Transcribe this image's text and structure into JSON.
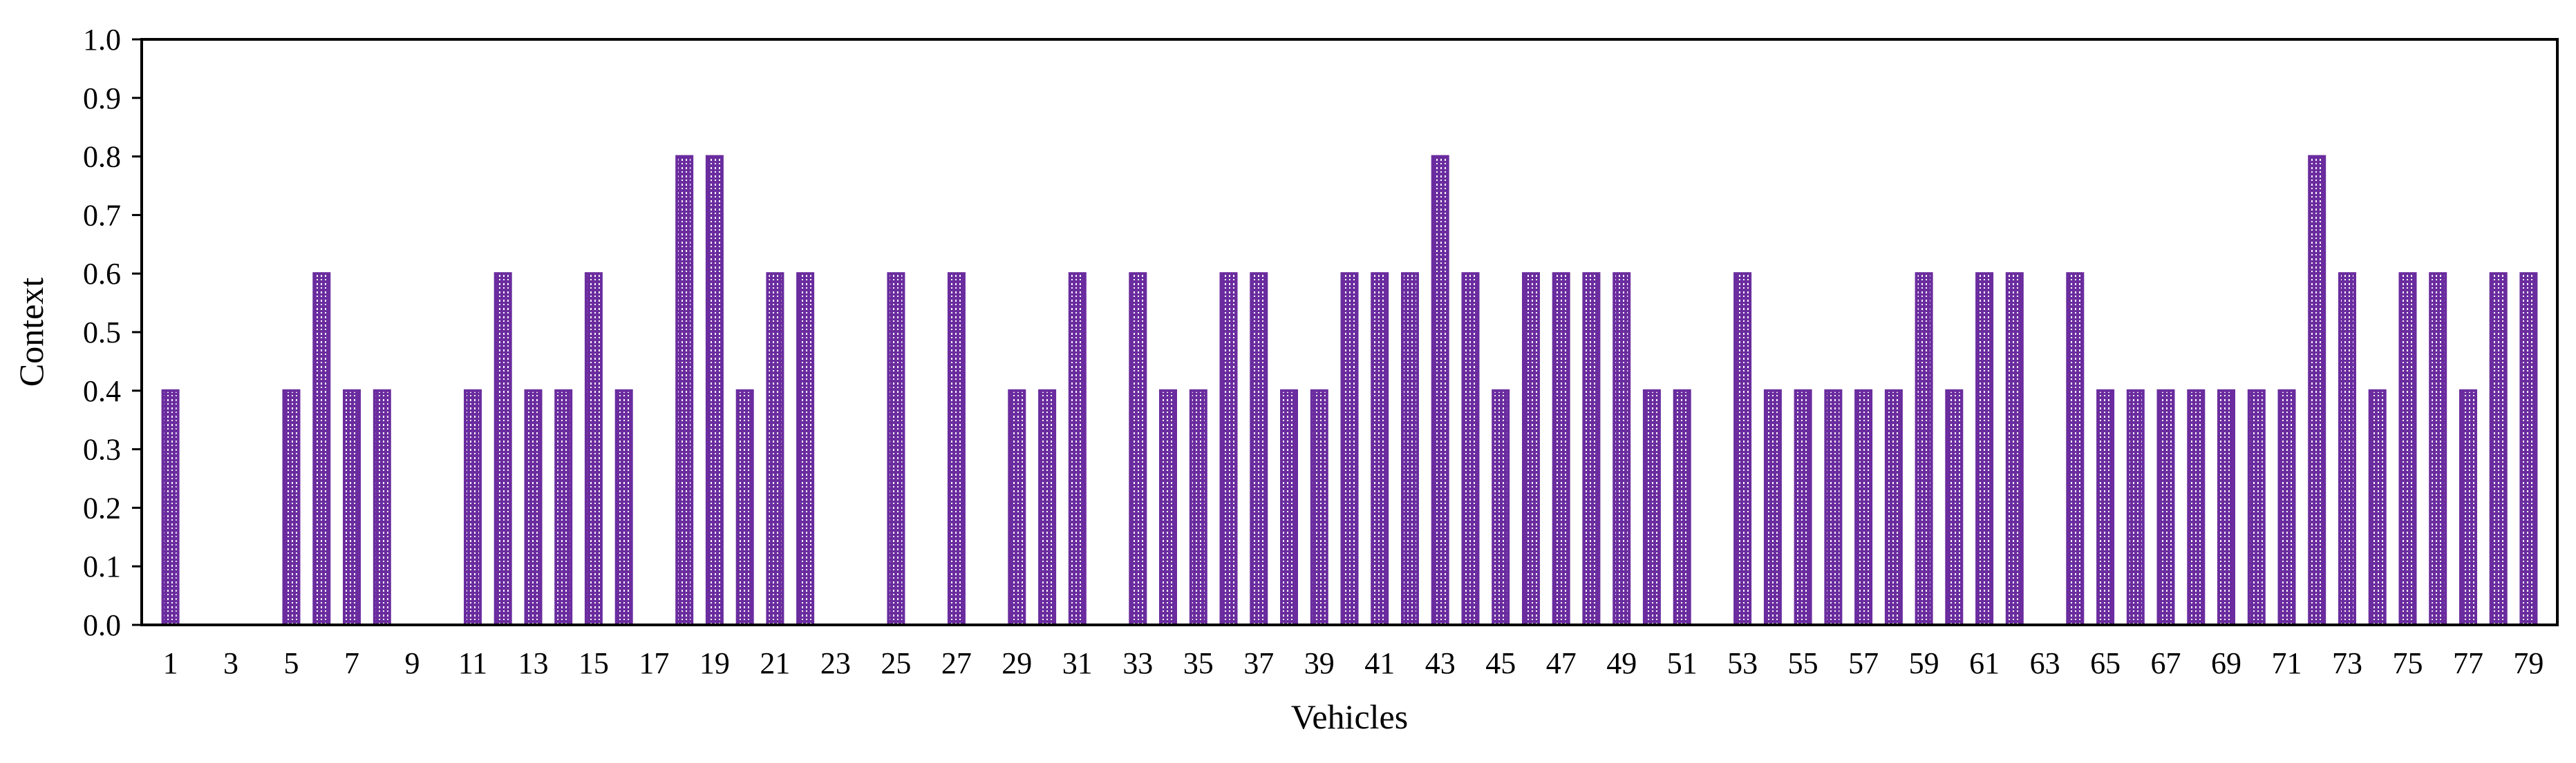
{
  "chart_data": {
    "type": "bar",
    "xlabel": "Vehicles",
    "ylabel": "Context",
    "ylim": [
      0,
      1.0
    ],
    "yticks": [
      0.0,
      0.1,
      0.2,
      0.3,
      0.4,
      0.5,
      0.6,
      0.7,
      0.8,
      0.9,
      1.0
    ],
    "ytick_labels": [
      "0.0",
      "0.1",
      "0.2",
      "0.3",
      "0.4",
      "0.5",
      "0.6",
      "0.7",
      "0.8",
      "0.9",
      "1.0"
    ],
    "categories": [
      1,
      2,
      3,
      4,
      5,
      6,
      7,
      8,
      9,
      10,
      11,
      12,
      13,
      14,
      15,
      16,
      17,
      18,
      19,
      20,
      21,
      22,
      23,
      24,
      25,
      26,
      27,
      28,
      29,
      30,
      31,
      32,
      33,
      34,
      35,
      36,
      37,
      38,
      39,
      40,
      41,
      42,
      43,
      44,
      45,
      46,
      47,
      48,
      49,
      50,
      51,
      52,
      53,
      54,
      55,
      56,
      57,
      58,
      59,
      60,
      61,
      62,
      63,
      64,
      65,
      66,
      67,
      68,
      69,
      70,
      71,
      72,
      73,
      74,
      75,
      76,
      77,
      78,
      79
    ],
    "xtick_labels": [
      "1",
      "3",
      "5",
      "7",
      "9",
      "11",
      "13",
      "15",
      "17",
      "19",
      "21",
      "23",
      "25",
      "27",
      "29",
      "31",
      "33",
      "35",
      "37",
      "39",
      "41",
      "43",
      "45",
      "47",
      "49",
      "51",
      "53",
      "55",
      "57",
      "59",
      "61",
      "63",
      "65",
      "67",
      "69",
      "71",
      "73",
      "75",
      "77",
      "79"
    ],
    "values": [
      0.4,
      0,
      0,
      0,
      0.4,
      0.6,
      0.4,
      0.4,
      0,
      0,
      0.4,
      0.6,
      0.4,
      0.4,
      0.6,
      0.4,
      0,
      0.8,
      0.8,
      0.4,
      0.6,
      0.6,
      0,
      0,
      0.6,
      0,
      0.6,
      0,
      0.4,
      0.4,
      0.6,
      0,
      0.6,
      0.4,
      0.4,
      0.6,
      0.6,
      0.4,
      0.4,
      0.6,
      0.6,
      0.6,
      0.8,
      0.6,
      0.4,
      0.6,
      0.6,
      0.6,
      0.6,
      0.4,
      0.4,
      0,
      0.6,
      0.4,
      0.4,
      0.4,
      0.4,
      0.4,
      0.6,
      0.4,
      0.6,
      0.6,
      0,
      0.6,
      0.4,
      0.4,
      0.4,
      0.4,
      0.4,
      0.4,
      0.4,
      0.8,
      0.6,
      0.4,
      0.6,
      0.6,
      0.4,
      0.6,
      0.6
    ],
    "bar_color": "#6a2c9e",
    "grid": false,
    "legend": "none"
  }
}
